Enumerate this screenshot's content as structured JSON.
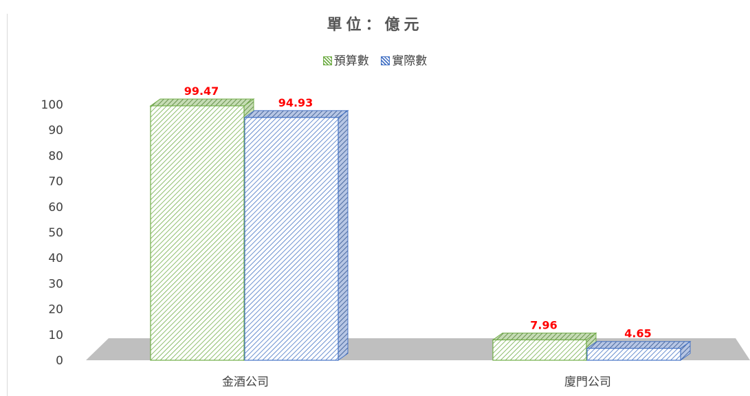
{
  "chart_data": {
    "type": "bar",
    "title": "單位：億元",
    "categories": [
      "金酒公司",
      "廈門公司"
    ],
    "series": [
      {
        "name": "預算數",
        "values": [
          99.47,
          7.96
        ],
        "color": "#70ad47"
      },
      {
        "name": "實際數",
        "values": [
          94.93,
          4.65
        ],
        "color": "#4472c4"
      }
    ],
    "data_labels": [
      "99.47",
      "94.93",
      "7.96",
      "4.65"
    ],
    "label_color": "#ff0000",
    "ylim": [
      0,
      100
    ],
    "yticks": [
      "0",
      "10",
      "20",
      "30",
      "40",
      "50",
      "60",
      "70",
      "80",
      "90",
      "100"
    ],
    "legend_position": "top",
    "grid": false,
    "style": "3d-column-hatched"
  }
}
